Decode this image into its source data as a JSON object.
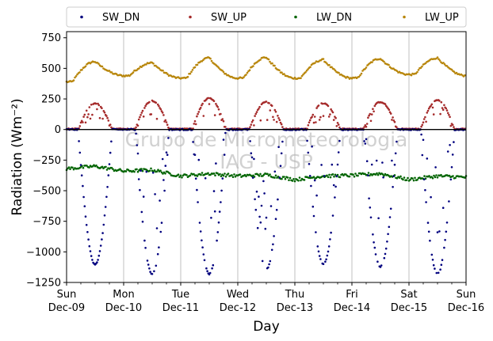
{
  "chart_data": {
    "type": "scatter",
    "xlabel": "Day",
    "ylabel": "Radiation (Wm⁻²)",
    "watermark_lines": [
      "Grupo de Micrometeorologia",
      "IAG - USP"
    ],
    "ylim": [
      -1250,
      800
    ],
    "yticks": [
      -1250,
      -1000,
      -750,
      -500,
      -250,
      0,
      250,
      500,
      750
    ],
    "xlim": [
      0,
      7
    ],
    "xticks": [
      {
        "day": 0,
        "weekday": "Sun",
        "date": "Dec-09"
      },
      {
        "day": 1,
        "weekday": "Mon",
        "date": "Dec-10"
      },
      {
        "day": 2,
        "weekday": "Tue",
        "date": "Dec-11"
      },
      {
        "day": 3,
        "weekday": "Wed",
        "date": "Dec-12"
      },
      {
        "day": 4,
        "weekday": "Thu",
        "date": "Dec-13"
      },
      {
        "day": 5,
        "weekday": "Fri",
        "date": "Dec-14"
      },
      {
        "day": 6,
        "weekday": "Sat",
        "date": "Dec-15"
      },
      {
        "day": 7,
        "weekday": "Sun",
        "date": "Dec-16"
      }
    ],
    "grid": "vertical",
    "legend_position": "top",
    "series": [
      {
        "name": "SW_DN",
        "color": "#00007f",
        "daily_peak": [
          -1100,
          -1180,
          -1180,
          -1140,
          -1100,
          -1120,
          -1180
        ],
        "night_level": 0
      },
      {
        "name": "SW_UP",
        "color": "#a52a2a",
        "daily_peak": [
          215,
          235,
          255,
          225,
          215,
          225,
          240
        ],
        "night_level": 5
      },
      {
        "name": "LW_DN",
        "color": "#006400",
        "daily_profile": [
          [
            0,
            -320
          ],
          [
            0.5,
            -300
          ],
          [
            1,
            -340
          ],
          [
            1.5,
            -330
          ],
          [
            2,
            -380
          ],
          [
            2.5,
            -360
          ],
          [
            3,
            -380
          ],
          [
            3.5,
            -370
          ],
          [
            4,
            -410
          ],
          [
            4.5,
            -380
          ],
          [
            5,
            -375
          ],
          [
            5.5,
            -360
          ],
          [
            6,
            -410
          ],
          [
            6.5,
            -380
          ],
          [
            7,
            -390
          ]
        ]
      },
      {
        "name": "LW_UP",
        "color": "#b8860b",
        "daily_min": [
          390,
          440,
          420,
          420,
          420,
          420,
          450,
          440
        ],
        "daily_max": [
          555,
          545,
          585,
          590,
          570,
          580,
          585
        ]
      }
    ]
  }
}
